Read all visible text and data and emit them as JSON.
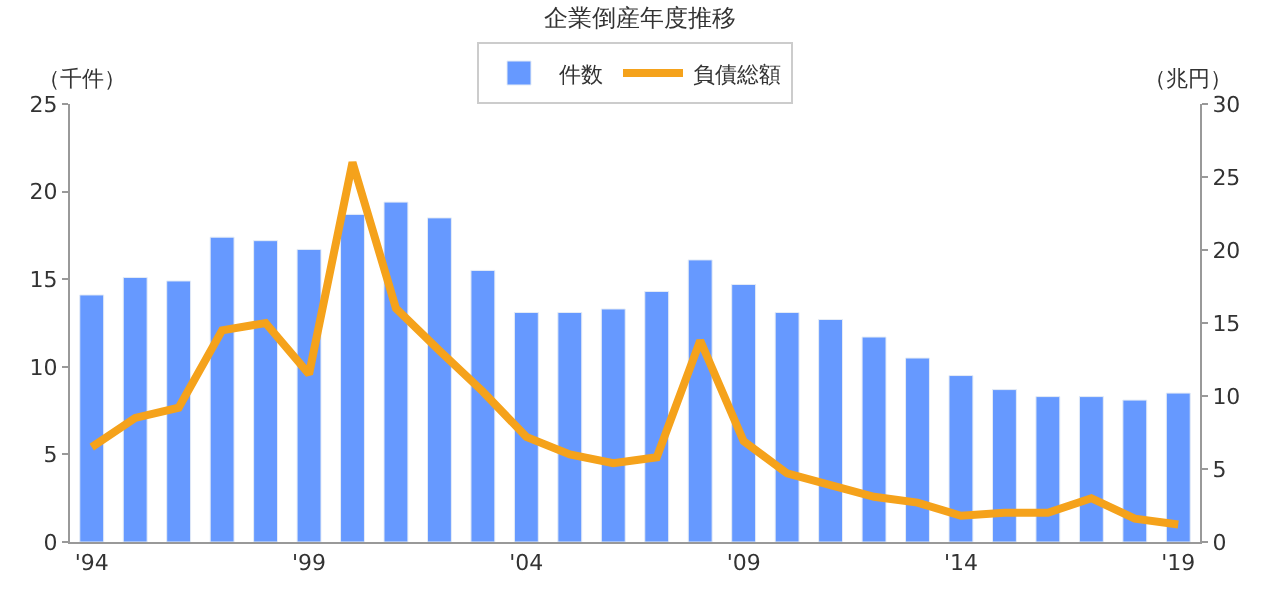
{
  "chart_data": {
    "type": "bar",
    "title": "企業倒産年度推移",
    "ylabel": "（千件）",
    "y2label": "（兆円）",
    "categories": [
      "'94",
      null,
      null,
      null,
      null,
      "'99",
      null,
      null,
      null,
      null,
      "'04",
      null,
      null,
      null,
      null,
      "'09",
      null,
      null,
      null,
      null,
      "'14",
      null,
      null,
      null,
      null,
      "'19"
    ],
    "series": [
      {
        "name": "件数",
        "color": "#6699ff",
        "values": [
          14.1,
          15.1,
          14.9,
          17.4,
          17.2,
          16.7,
          18.7,
          19.4,
          18.5,
          15.5,
          13.1,
          13.1,
          13.3,
          14.3,
          16.1,
          14.7,
          13.1,
          12.7,
          11.7,
          10.5,
          9.5,
          8.7,
          8.3,
          8.3,
          8.1,
          8.5
        ]
      },
      {
        "name": "負債総額",
        "type": "line",
        "axis": "y2",
        "color": "#f5a21b",
        "values": [
          6.5,
          8.5,
          9.2,
          14.5,
          15.0,
          11.5,
          26.0,
          16.0,
          13.1,
          10.3,
          7.2,
          6.0,
          5.4,
          5.8,
          13.8,
          6.9,
          4.7,
          3.9,
          3.1,
          2.7,
          1.8,
          2.0,
          2.0,
          3.0,
          1.6,
          1.2
        ]
      }
    ],
    "ylim": [
      0,
      25
    ],
    "yticks": [
      0,
      5,
      10,
      15,
      20,
      25
    ],
    "y2lim": [
      0,
      30
    ],
    "y2ticks": [
      0,
      5,
      10,
      15,
      20,
      25,
      30
    ],
    "legend": "top",
    "marker": "none",
    "line_style": "solid"
  }
}
